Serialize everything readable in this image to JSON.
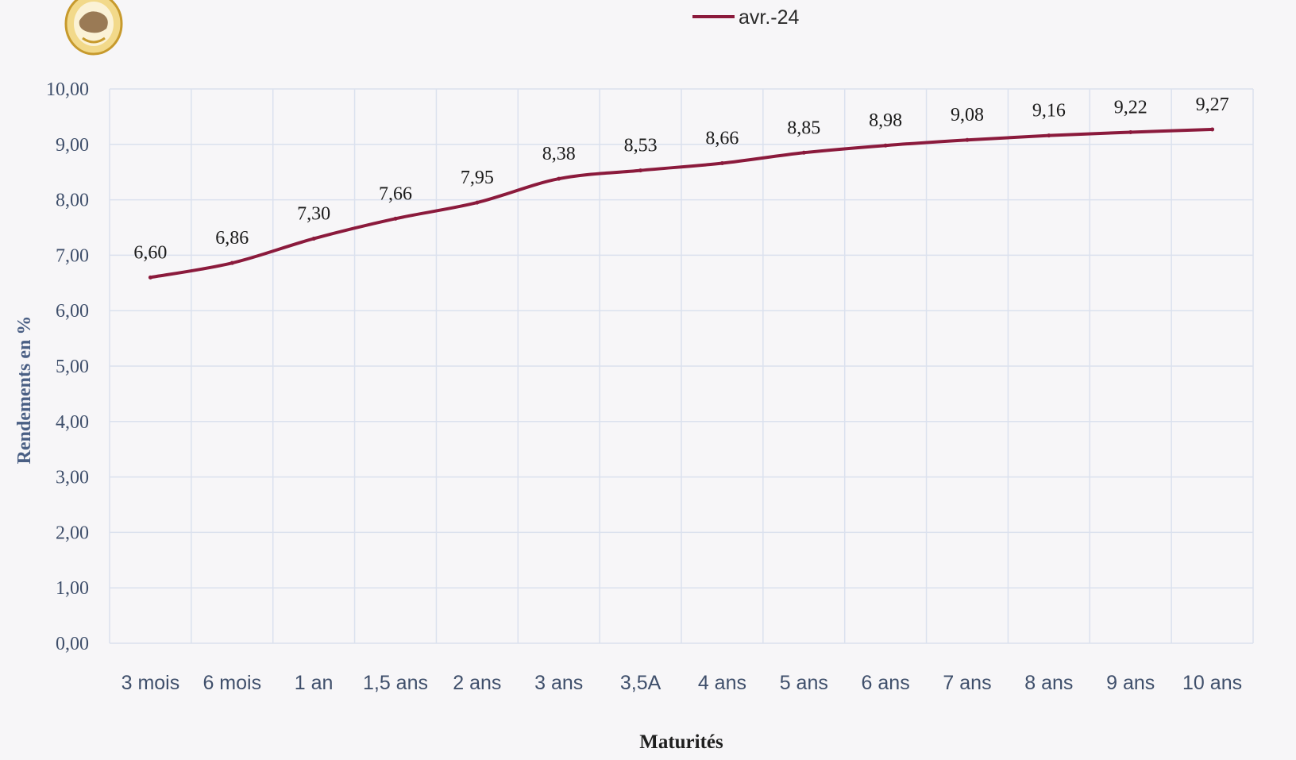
{
  "chart_data": {
    "type": "line",
    "categories": [
      "3 mois",
      "6 mois",
      "1 an",
      "1,5 ans",
      "2 ans",
      "3 ans",
      "3,5A",
      "4 ans",
      "5 ans",
      "6 ans",
      "7 ans",
      "8 ans",
      "9 ans",
      "10 ans"
    ],
    "series": [
      {
        "name": "avr.-24",
        "values": [
          6.6,
          6.86,
          7.3,
          7.66,
          7.95,
          8.38,
          8.53,
          8.66,
          8.85,
          8.98,
          9.08,
          9.16,
          9.22,
          9.27
        ],
        "data_labels": [
          "6,60",
          "6,86",
          "7,30",
          "7,66",
          "7,95",
          "8,38",
          "8,53",
          "8,66",
          "8,85",
          "8,98",
          "9,08",
          "9,16",
          "9,22",
          "9,27"
        ]
      }
    ],
    "ylabel": "Rendements en %",
    "xlabel": "Maturités",
    "ylim": [
      0,
      10
    ],
    "y_ticks": [
      "0,00",
      "1,00",
      "2,00",
      "3,00",
      "4,00",
      "5,00",
      "6,00",
      "7,00",
      "8,00",
      "9,00",
      "10,00"
    ],
    "grid": true,
    "legend_position": "top-center"
  },
  "colors": {
    "line": "#8b1a3c",
    "grid": "#dbe1ee",
    "tick_text": "#3f4f6b",
    "axis_title": "#4a5f84",
    "data_label": "#1a1a1a"
  },
  "logo": {
    "icon": "grain-emblem-icon"
  }
}
